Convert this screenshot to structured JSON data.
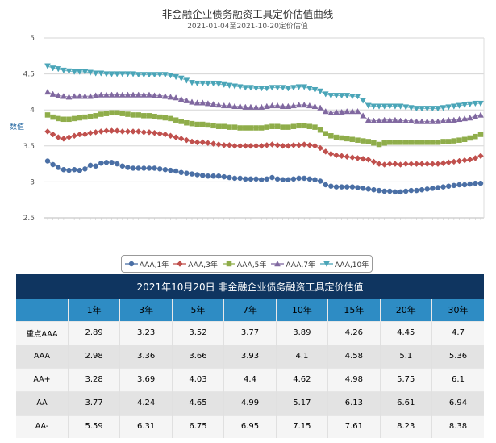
{
  "chart_data": {
    "type": "line",
    "title": "非金融企业债务融资工具定价估值曲线",
    "subtitle": "2021-01-04至2021-10-20定价估值",
    "ylabel": "数值",
    "ylim": [
      2.5,
      5
    ],
    "yticks": [
      "5",
      "4.5",
      "4",
      "3.5",
      "3",
      "2.5"
    ],
    "grid": true,
    "legend_position": "bottom",
    "series": [
      {
        "name": "AAA,1年",
        "color": "#4a6fa5",
        "marker": "circle",
        "values": [
          3.29,
          3.24,
          3.2,
          3.17,
          3.16,
          3.17,
          3.16,
          3.18,
          3.23,
          3.22,
          3.26,
          3.27,
          3.27,
          3.25,
          3.22,
          3.2,
          3.19,
          3.19,
          3.19,
          3.19,
          3.19,
          3.18,
          3.17,
          3.16,
          3.15,
          3.13,
          3.12,
          3.11,
          3.1,
          3.09,
          3.08,
          3.08,
          3.08,
          3.07,
          3.06,
          3.05,
          3.05,
          3.04,
          3.04,
          3.04,
          3.03,
          3.04,
          3.06,
          3.04,
          3.03,
          3.03,
          3.04,
          3.05,
          3.05,
          3.04,
          3.03,
          3.01,
          2.96,
          2.94,
          2.93,
          2.93,
          2.93,
          2.93,
          2.92,
          2.91,
          2.9,
          2.89,
          2.88,
          2.87,
          2.87,
          2.86,
          2.86,
          2.87,
          2.88,
          2.88,
          2.89,
          2.9,
          2.91,
          2.92,
          2.93,
          2.94,
          2.95,
          2.96,
          2.96,
          2.97,
          2.98,
          2.98
        ]
      },
      {
        "name": "AAA,3年",
        "color": "#c0504d",
        "marker": "diamond",
        "values": [
          3.7,
          3.66,
          3.62,
          3.6,
          3.62,
          3.64,
          3.66,
          3.66,
          3.68,
          3.69,
          3.7,
          3.71,
          3.71,
          3.71,
          3.7,
          3.7,
          3.7,
          3.7,
          3.69,
          3.69,
          3.68,
          3.67,
          3.66,
          3.64,
          3.62,
          3.6,
          3.58,
          3.56,
          3.55,
          3.55,
          3.54,
          3.53,
          3.52,
          3.51,
          3.51,
          3.5,
          3.5,
          3.5,
          3.5,
          3.5,
          3.5,
          3.51,
          3.52,
          3.51,
          3.5,
          3.5,
          3.51,
          3.51,
          3.52,
          3.51,
          3.5,
          3.47,
          3.42,
          3.39,
          3.37,
          3.36,
          3.35,
          3.34,
          3.33,
          3.32,
          3.31,
          3.28,
          3.25,
          3.24,
          3.25,
          3.25,
          3.24,
          3.25,
          3.25,
          3.25,
          3.25,
          3.25,
          3.25,
          3.25,
          3.26,
          3.27,
          3.28,
          3.29,
          3.3,
          3.31,
          3.33,
          3.36
        ]
      },
      {
        "name": "AAA,5年",
        "color": "#8fad4a",
        "marker": "square",
        "values": [
          3.93,
          3.9,
          3.88,
          3.87,
          3.87,
          3.88,
          3.89,
          3.9,
          3.91,
          3.92,
          3.94,
          3.95,
          3.96,
          3.96,
          3.95,
          3.94,
          3.93,
          3.93,
          3.92,
          3.92,
          3.91,
          3.9,
          3.89,
          3.88,
          3.86,
          3.84,
          3.82,
          3.81,
          3.8,
          3.8,
          3.79,
          3.78,
          3.77,
          3.77,
          3.76,
          3.76,
          3.75,
          3.75,
          3.75,
          3.75,
          3.75,
          3.76,
          3.77,
          3.77,
          3.76,
          3.76,
          3.77,
          3.78,
          3.78,
          3.77,
          3.76,
          3.72,
          3.67,
          3.64,
          3.62,
          3.61,
          3.6,
          3.59,
          3.58,
          3.57,
          3.56,
          3.54,
          3.52,
          3.54,
          3.55,
          3.55,
          3.55,
          3.55,
          3.55,
          3.55,
          3.55,
          3.55,
          3.55,
          3.55,
          3.56,
          3.56,
          3.57,
          3.58,
          3.59,
          3.61,
          3.63,
          3.66
        ]
      },
      {
        "name": "AAA,7年",
        "color": "#8068a0",
        "marker": "triangle",
        "values": [
          4.25,
          4.22,
          4.2,
          4.19,
          4.18,
          4.19,
          4.19,
          4.19,
          4.19,
          4.2,
          4.21,
          4.21,
          4.21,
          4.21,
          4.21,
          4.21,
          4.21,
          4.21,
          4.21,
          4.21,
          4.2,
          4.2,
          4.19,
          4.18,
          4.17,
          4.15,
          4.13,
          4.11,
          4.1,
          4.1,
          4.09,
          4.08,
          4.07,
          4.06,
          4.06,
          4.05,
          4.05,
          4.04,
          4.04,
          4.04,
          4.04,
          4.05,
          4.06,
          4.06,
          4.05,
          4.05,
          4.06,
          4.07,
          4.07,
          4.06,
          4.05,
          4.03,
          3.98,
          3.96,
          3.97,
          3.97,
          3.98,
          3.98,
          3.98,
          3.92,
          3.86,
          3.85,
          3.85,
          3.86,
          3.86,
          3.86,
          3.85,
          3.85,
          3.85,
          3.84,
          3.84,
          3.84,
          3.84,
          3.84,
          3.85,
          3.86,
          3.86,
          3.87,
          3.88,
          3.89,
          3.91,
          3.93
        ]
      },
      {
        "name": "AAA,10年",
        "color": "#4aa5b8",
        "marker": "triangle-down",
        "values": [
          4.61,
          4.58,
          4.57,
          4.55,
          4.54,
          4.53,
          4.53,
          4.53,
          4.52,
          4.51,
          4.51,
          4.5,
          4.5,
          4.5,
          4.5,
          4.5,
          4.5,
          4.49,
          4.49,
          4.49,
          4.49,
          4.49,
          4.49,
          4.48,
          4.46,
          4.44,
          4.41,
          4.38,
          4.37,
          4.37,
          4.37,
          4.37,
          4.36,
          4.35,
          4.34,
          4.33,
          4.32,
          4.31,
          4.31,
          4.3,
          4.3,
          4.3,
          4.31,
          4.31,
          4.31,
          4.3,
          4.31,
          4.32,
          4.32,
          4.3,
          4.28,
          4.26,
          4.22,
          4.2,
          4.2,
          4.2,
          4.2,
          4.19,
          4.19,
          4.13,
          4.06,
          4.05,
          4.05,
          4.05,
          4.05,
          4.05,
          4.05,
          4.04,
          4.03,
          4.02,
          4.02,
          4.02,
          4.02,
          4.02,
          4.03,
          4.04,
          4.05,
          4.06,
          4.07,
          4.08,
          4.09,
          4.09
        ]
      }
    ]
  },
  "table": {
    "title": "2021年10月20日 非金融企业债务融资工具定价估值",
    "corner": "",
    "columns": [
      "1年",
      "3年",
      "5年",
      "7年",
      "10年",
      "15年",
      "20年",
      "30年"
    ],
    "rows": [
      {
        "label": "重点AAA",
        "values": [
          "2.89",
          "3.23",
          "3.52",
          "3.77",
          "3.89",
          "4.26",
          "4.45",
          "4.7"
        ]
      },
      {
        "label": "AAA",
        "values": [
          "2.98",
          "3.36",
          "3.66",
          "3.93",
          "4.1",
          "4.58",
          "5.1",
          "5.36"
        ]
      },
      {
        "label": "AA+",
        "values": [
          "3.28",
          "3.69",
          "4.03",
          "4.4",
          "4.62",
          "4.98",
          "5.75",
          "6.1"
        ]
      },
      {
        "label": "AA",
        "values": [
          "3.77",
          "4.24",
          "4.65",
          "4.99",
          "5.17",
          "6.13",
          "6.61",
          "6.94"
        ]
      },
      {
        "label": "AA-",
        "values": [
          "5.59",
          "6.31",
          "6.75",
          "6.95",
          "7.15",
          "7.61",
          "8.23",
          "8.38"
        ]
      }
    ]
  }
}
